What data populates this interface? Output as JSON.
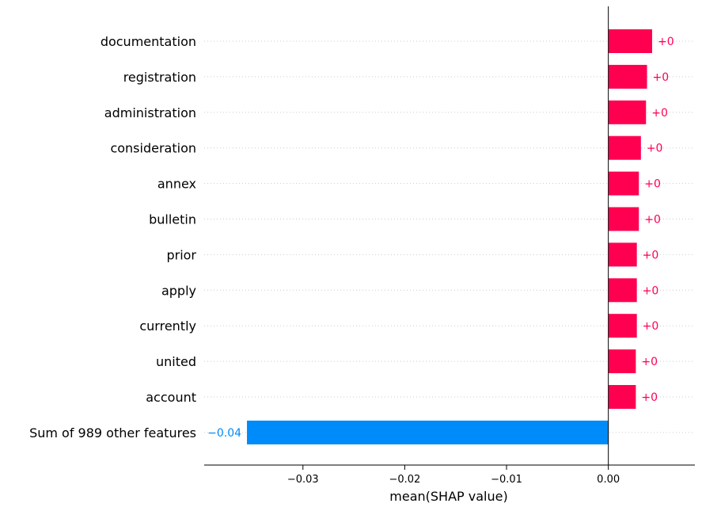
{
  "chart_data": {
    "type": "bar",
    "orientation": "horizontal",
    "xlabel": "mean(SHAP value)",
    "categories": [
      "documentation",
      "registration",
      "administration",
      "consideration",
      "annex",
      "bulletin",
      "prior",
      "apply",
      "currently",
      "united",
      "account",
      "Sum of 989 other features"
    ],
    "values": [
      0.0043,
      0.0038,
      0.0037,
      0.0032,
      0.003,
      0.003,
      0.0028,
      0.0028,
      0.0028,
      0.0027,
      0.0027,
      -0.0355
    ],
    "value_labels": [
      "+0",
      "+0",
      "+0",
      "+0",
      "+0",
      "+0",
      "+0",
      "+0",
      "+0",
      "+0",
      "+0",
      "−0.04"
    ],
    "xlim": [
      -0.0397,
      0.0085
    ],
    "xticks": [
      -0.03,
      -0.02,
      -0.01,
      0.0
    ],
    "xtick_labels": [
      "−0.03",
      "−0.02",
      "−0.01",
      "0.00"
    ],
    "grid": "horizontal dotted",
    "colors": {
      "positive": "#ff0051",
      "negative": "#008bfb",
      "axis": "#000000",
      "grid": "#cccccc"
    }
  }
}
